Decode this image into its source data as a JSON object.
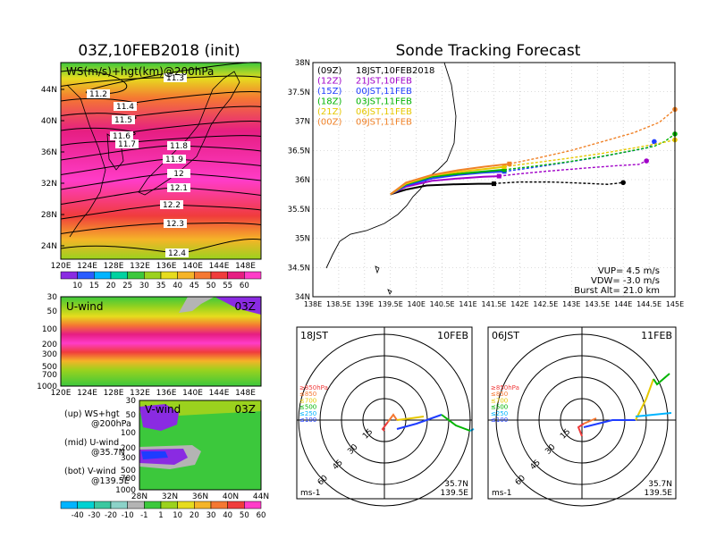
{
  "left_title": "03Z,10FEB2018 (init)",
  "right_title": "Sonde Tracking Forecast",
  "ws_panel": {
    "label": "WS(m/s)+hgt(km)@200hPa",
    "lat_labels": [
      "44N",
      "40N",
      "36N",
      "32N",
      "28N",
      "24N"
    ],
    "lon_labels": [
      "120E",
      "124E",
      "128E",
      "132E",
      "136E",
      "140E",
      "144E",
      "148E"
    ],
    "contour_labels": [
      "11.2",
      "11.3",
      "11.4",
      "11.5",
      "11.6",
      "11.7",
      "11.8",
      "11.9",
      "12",
      "12.1",
      "12.2",
      "12.3",
      "12.4"
    ],
    "colorbar_ticks": [
      "10",
      "15",
      "20",
      "25",
      "30",
      "35",
      "40",
      "45",
      "50",
      "55",
      "60"
    ],
    "colorbar_colors": [
      "#8a2be2",
      "#2a5cff",
      "#00b4ff",
      "#00d2a0",
      "#3cc83c",
      "#9bd21e",
      "#e6dc1e",
      "#f5b428",
      "#f57832",
      "#f03c3c",
      "#e61e82",
      "#ff3cc8"
    ]
  },
  "u_panel": {
    "label": "U-wind",
    "time": "03Z",
    "p_labels": [
      "30",
      "50",
      "100",
      "200",
      "300",
      "500",
      "700",
      "1000"
    ],
    "lon_labels": [
      "120E",
      "124E",
      "128E",
      "132E",
      "136E",
      "140E",
      "144E",
      "148E"
    ]
  },
  "v_panel": {
    "label": "V-wind",
    "time": "03Z",
    "p_labels": [
      "30",
      "50",
      "100",
      "200",
      "300",
      "500",
      "700",
      "1000"
    ],
    "lat_labels": [
      "28N",
      "32N",
      "36N",
      "40N",
      "44N"
    ],
    "colorbar_ticks": [
      "-40",
      "-30",
      "-20",
      "-10",
      "-1",
      "1",
      "10",
      "20",
      "30",
      "40",
      "50",
      "60"
    ],
    "colorbar_colors": [
      "#00b4ff",
      "#00d2d2",
      "#3cc8a0",
      "#8cd2c8",
      "#b4b4b4",
      "#3cc83c",
      "#9bd21e",
      "#e6dc1e",
      "#f5b428",
      "#f57832",
      "#f03c3c",
      "#ff3cc8"
    ]
  },
  "legend_text": {
    "line1": "(up) WS+hgt",
    "line2": "@200hPa",
    "line3": "(mid) U-wind",
    "line4": "@35.7N",
    "line5": "(bot) V-wind",
    "line6": "@139.5E"
  },
  "track_panel": {
    "lat_labels": [
      "38N",
      "37.5N",
      "37N",
      "36.5N",
      "36N",
      "35.5N",
      "35N",
      "34.5N",
      "34N"
    ],
    "lon_labels": [
      "138E",
      "138.5E",
      "139E",
      "139.5E",
      "140E",
      "140.5E",
      "141E",
      "141.5E",
      "142E",
      "142.5E",
      "143E",
      "143.5E",
      "144E",
      "144.5E",
      "145E"
    ],
    "legend": [
      {
        "code": "(09Z)",
        "text": "18JST,10FEB2018",
        "color": "#000000"
      },
      {
        "code": "(12Z)",
        "text": "21JST,10FEB",
        "color": "#a000c8"
      },
      {
        "code": "(15Z)",
        "text": "00JST,11FEB",
        "color": "#1e3cff"
      },
      {
        "code": "(18Z)",
        "text": "03JST,11FEB",
        "color": "#00b400"
      },
      {
        "code": "(21Z)",
        "text": "06JST,11FEB",
        "color": "#e6c800"
      },
      {
        "code": "(00Z)",
        "text": "09JST,11FEB",
        "color": "#f08228"
      }
    ],
    "info": {
      "vup": "VUP=  4.5 m/s",
      "vdw": "VDW= -3.0 m/s",
      "burst": "Burst Alt= 21.0 km"
    }
  },
  "chart_data": {
    "type": "line",
    "title": "Sonde Tracking Forecast",
    "xlim": [
      138,
      145
    ],
    "ylim": [
      34,
      38
    ],
    "series": [
      {
        "name": "18JST,10FEB2018",
        "color": "#000000",
        "x": [
          139.5,
          139.8,
          140.2,
          140.7,
          141.2,
          141.5,
          141.6,
          142.0,
          142.6,
          143.2,
          143.7,
          144.0
        ],
        "y": [
          35.75,
          35.83,
          35.9,
          35.92,
          35.93,
          35.93,
          35.94,
          35.96,
          35.96,
          35.94,
          35.92,
          35.95
        ]
      },
      {
        "name": "21JST,10FEB",
        "color": "#a000c8",
        "x": [
          139.5,
          139.8,
          140.3,
          140.8,
          141.3,
          141.6,
          142.0,
          142.6,
          143.3,
          143.9,
          144.3,
          144.45
        ],
        "y": [
          35.75,
          35.88,
          35.98,
          36.02,
          36.05,
          36.06,
          36.1,
          36.15,
          36.2,
          36.24,
          36.26,
          36.32
        ]
      },
      {
        "name": "00JST,11FEB",
        "color": "#1e3cff",
        "x": [
          139.5,
          139.8,
          140.3,
          140.8,
          141.3,
          141.7,
          142.2,
          142.8,
          143.5,
          144.1,
          144.5,
          144.6
        ],
        "y": [
          35.75,
          35.9,
          36.02,
          36.08,
          36.12,
          36.14,
          36.2,
          36.28,
          36.38,
          36.48,
          36.55,
          36.65
        ]
      },
      {
        "name": "03JST,11FEB",
        "color": "#00b400",
        "x": [
          139.5,
          139.8,
          140.3,
          140.8,
          141.3,
          141.7,
          142.2,
          142.9,
          143.6,
          144.2,
          144.6,
          144.8,
          145.0
        ],
        "y": [
          35.75,
          35.92,
          36.05,
          36.1,
          36.14,
          36.17,
          36.22,
          36.3,
          36.4,
          36.5,
          36.57,
          36.65,
          36.78
        ]
      },
      {
        "name": "06JST,11FEB",
        "color": "#e6c800",
        "x": [
          139.5,
          139.8,
          140.3,
          140.8,
          141.3,
          141.7,
          142.2,
          142.9,
          143.6,
          144.2,
          144.7,
          145.0
        ],
        "y": [
          35.75,
          35.93,
          36.07,
          36.13,
          36.18,
          36.22,
          36.28,
          36.36,
          36.45,
          36.54,
          36.62,
          36.68
        ]
      },
      {
        "name": "09JST,11FEB",
        "color": "#f08228",
        "x": [
          139.5,
          139.8,
          140.3,
          140.8,
          141.3,
          141.8,
          142.3,
          143.0,
          143.6,
          144.2,
          144.7,
          145.0
        ],
        "y": [
          35.75,
          35.95,
          36.08,
          36.16,
          36.22,
          36.27,
          36.36,
          36.5,
          36.65,
          36.8,
          36.98,
          37.2
        ]
      }
    ]
  },
  "hodo_left": {
    "time": "18JST",
    "date": "10FEB",
    "loc1": "35.7N",
    "loc2": "139.5E",
    "unit": "ms-1",
    "ring_labels": [
      "15",
      "30",
      "45",
      "60"
    ],
    "levels": [
      {
        "label": "≥850hPa",
        "color": "#f03c3c"
      },
      {
        "label": "≤850",
        "color": "#f57832"
      },
      {
        "label": "≤700",
        "color": "#e6c800"
      },
      {
        "label": "≤500",
        "color": "#00b400"
      },
      {
        "label": "≤250",
        "color": "#00b4ff"
      },
      {
        "label": "≤100",
        "color": "#1e3cff"
      }
    ]
  },
  "hodo_right": {
    "time": "06JST",
    "date": "11FEB",
    "loc1": "35.7N",
    "loc2": "139.5E",
    "unit": "ms-1",
    "ring_labels": [
      "15",
      "30",
      "45",
      "60"
    ],
    "levels": [
      {
        "label": "≥850hPa",
        "color": "#f03c3c"
      },
      {
        "label": "≤850",
        "color": "#f57832"
      },
      {
        "label": "≤700",
        "color": "#e6c800"
      },
      {
        "label": "≤500",
        "color": "#00b400"
      },
      {
        "label": "≤250",
        "color": "#00b4ff"
      },
      {
        "label": "≤100",
        "color": "#1e3cff"
      }
    ]
  }
}
